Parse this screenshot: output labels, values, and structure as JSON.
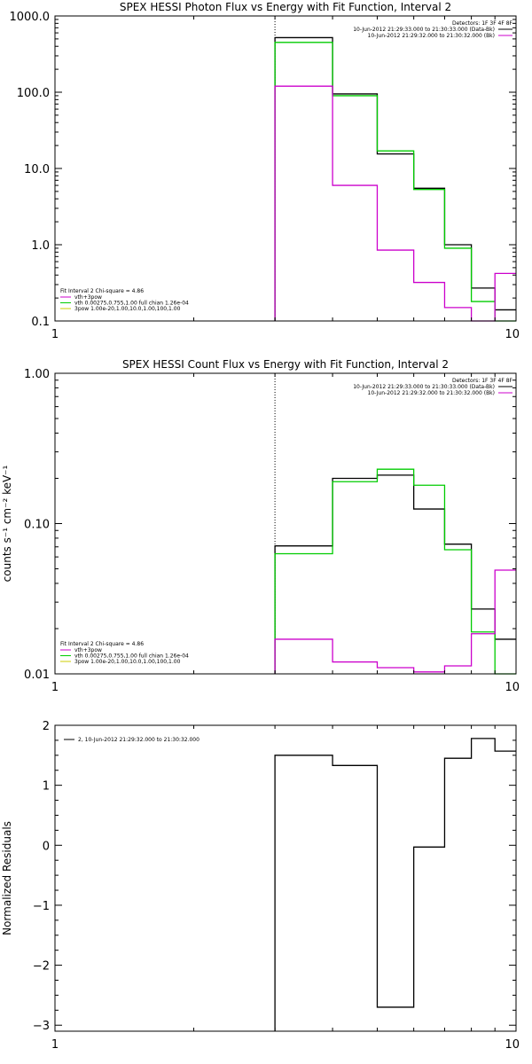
{
  "chart_data": [
    {
      "type": "line",
      "title": "SPEX HESSI Photon Flux vs Energy with Fit Function, Interval 2",
      "xlabel": "",
      "ylabel": "",
      "xscale": "log",
      "yscale": "log",
      "xlim": [
        1,
        10
      ],
      "ylim": [
        0.1,
        1000
      ],
      "x_ticks": [
        {
          "v": 1,
          "label": "1"
        },
        {
          "v": 10,
          "label": "10"
        }
      ],
      "y_ticks": [
        {
          "v": 0.1,
          "label": "0.1"
        },
        {
          "v": 1,
          "label": "1.0"
        },
        {
          "v": 10,
          "label": "10.0"
        },
        {
          "v": 100,
          "label": "100.0"
        },
        {
          "v": 1000,
          "label": "1000.0"
        }
      ],
      "marker_line_x": 3.0,
      "bin_edges": [
        3.0,
        4.0,
        5.0,
        6.0,
        7.0,
        8.0,
        9.0,
        10.0
      ],
      "header_lines": [
        {
          "text": "Detectors: 1F 3F 4F 8F",
          "color": ""
        },
        {
          "text": "10-Jun-2012 21:29:33.000 to 21:30:33.000 (Data-Bk)",
          "color": "#000000"
        },
        {
          "text": "10-Jun-2012 21:29:32.000 to 21:30:32.000 (Bk)",
          "color": "#cc00cc"
        }
      ],
      "legend": {
        "position": "bottom-left",
        "title": "Fit Interval 2   Chi-square = 4.86",
        "entries": [
          {
            "text": "vth+3pow",
            "color": "#cc00cc"
          },
          {
            "text": "vth 0.00275,0.755,1.00  full chian 1.26e-04",
            "color": "#00cc00"
          },
          {
            "text": "3pow 1.00e-20,1.00,10.0,1.00,100,1.00",
            "color": "#cccc00"
          }
        ]
      },
      "series": [
        {
          "color": "#000000",
          "values": [
            520,
            95,
            15.5,
            5.5,
            1.0,
            0.27,
            0.14
          ]
        },
        {
          "color": "#00cc00",
          "values": [
            450,
            90,
            17,
            5.3,
            0.9,
            0.18,
            0.1
          ]
        },
        {
          "color": "#cc00cc",
          "values": [
            120,
            6.0,
            0.85,
            0.32,
            0.15,
            0.1,
            0.42
          ]
        }
      ]
    },
    {
      "type": "line",
      "title": "SPEX HESSI Count Flux vs Energy with Fit Function, Interval 2",
      "xlabel": "",
      "ylabel": "counts s⁻¹ cm⁻² keV⁻¹",
      "xscale": "log",
      "yscale": "log",
      "xlim": [
        1,
        10
      ],
      "ylim": [
        0.01,
        1.0
      ],
      "x_ticks": [
        {
          "v": 1,
          "label": "1"
        },
        {
          "v": 10,
          "label": "10"
        }
      ],
      "y_ticks": [
        {
          "v": 0.01,
          "label": "0.01"
        },
        {
          "v": 0.1,
          "label": "0.10"
        },
        {
          "v": 1,
          "label": "1.00"
        }
      ],
      "marker_line_x": 3.0,
      "bin_edges": [
        3.0,
        4.0,
        5.0,
        6.0,
        7.0,
        8.0,
        9.0,
        10.0
      ],
      "header_lines": [
        {
          "text": "Detectors: 1F 3F 4F 8F",
          "color": ""
        },
        {
          "text": "10-Jun-2012 21:29:33.000 to 21:30:33.000 (Data-Bk)",
          "color": "#000000"
        },
        {
          "text": "10-Jun-2012 21:29:32.000 to 21:30:32.000 (Bk)",
          "color": "#cc00cc"
        }
      ],
      "legend": {
        "position": "bottom-left",
        "title": "Fit Interval 2   Chi-square = 4.86",
        "entries": [
          {
            "text": "vth+3pow",
            "color": "#cc00cc"
          },
          {
            "text": "vth 0.00275,0.755,1.00  full chian 1.26e-04",
            "color": "#00cc00"
          },
          {
            "text": "3pow 1.00e-20,1.00,10.0,1.00,100,1.00",
            "color": "#cccc00"
          }
        ]
      },
      "series": [
        {
          "color": "#000000",
          "values": [
            0.071,
            0.2,
            0.21,
            0.125,
            0.073,
            0.027,
            0.017
          ]
        },
        {
          "color": "#00cc00",
          "values": [
            0.063,
            0.19,
            0.23,
            0.18,
            0.067,
            0.019,
            0.01
          ]
        },
        {
          "color": "#cc00cc",
          "values": [
            0.017,
            0.012,
            0.011,
            0.0103,
            0.0113,
            0.0185,
            0.049
          ]
        }
      ]
    },
    {
      "type": "line",
      "title": "",
      "xlabel": "",
      "ylabel": "Normalized Residuals",
      "xscale": "log",
      "yscale": "linear",
      "xlim": [
        1,
        10
      ],
      "ylim": [
        -3.1,
        2.0
      ],
      "x_ticks": [
        {
          "v": 1,
          "label": "1"
        },
        {
          "v": 10,
          "label": "10"
        }
      ],
      "y_ticks": [
        {
          "v": -3,
          "label": "−3"
        },
        {
          "v": -2,
          "label": "−2"
        },
        {
          "v": -1,
          "label": "−1"
        },
        {
          "v": 0,
          "label": "0"
        },
        {
          "v": 1,
          "label": "1"
        },
        {
          "v": 2,
          "label": "2"
        }
      ],
      "bin_edges": [
        3.0,
        4.0,
        5.0,
        6.0,
        7.0,
        8.0,
        9.0,
        10.0
      ],
      "header_lines": [],
      "legend": {
        "position": "top-left",
        "title": "",
        "entries": [
          {
            "text": "2, 10-Jun-2012 21:29:32.000 to 21:30:32.000",
            "color": "#000000"
          }
        ]
      },
      "series": [
        {
          "color": "#000000",
          "values": [
            1.5,
            1.33,
            -2.7,
            -0.03,
            1.45,
            1.78,
            1.57
          ]
        }
      ]
    }
  ]
}
